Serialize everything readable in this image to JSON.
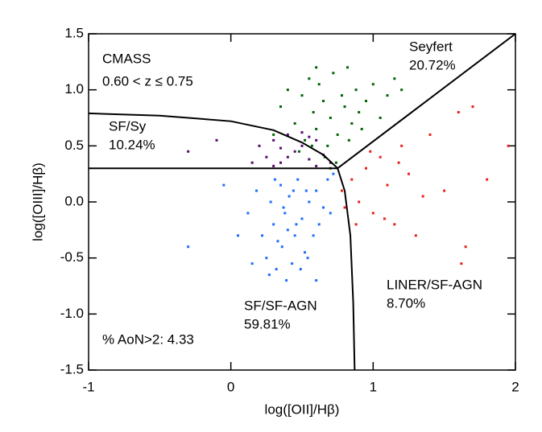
{
  "chart_data": {
    "type": "scatter",
    "xlabel": "log([OII]/Hβ)",
    "ylabel": "log([OIII]/Hβ)",
    "xlim": [
      -1,
      2
    ],
    "ylim": [
      -1.5,
      1.5
    ],
    "xticks": [
      -1,
      0,
      1,
      2
    ],
    "yticks": [
      1.5,
      {
        "value": 1.0,
        "label": "1.0"
      },
      0.5,
      {
        "value": 0.0,
        "label": "0.0"
      },
      -0.5,
      {
        "value": -1.0,
        "label": "-1.0"
      },
      -1.5
    ],
    "annotations": [
      "CMASS",
      "0.60 < z ≤ 0.75",
      "Seyfert",
      "20.72%",
      "SF/Sy",
      "10.24%",
      "SF/SF-AGN",
      "59.81%",
      "LINER/SF-AGN",
      "8.70%",
      "% AoN>2:  4.33"
    ],
    "series": [
      {
        "color": "#1e6cff",
        "x": [
          0.12,
          0.18,
          0.22,
          0.25,
          0.28,
          0.3,
          0.32,
          0.35,
          0.36,
          0.38,
          0.4,
          0.41,
          0.43,
          0.45,
          0.47,
          0.5,
          0.52,
          0.55,
          0.58,
          0.6,
          0.62,
          0.65,
          0.68,
          0.7,
          0.72,
          0.27,
          0.33,
          0.39,
          0.44,
          0.49,
          0.54,
          0.31,
          0.37,
          0.46,
          0.53,
          -0.3,
          -0.05,
          0.05,
          0.15,
          0.6
        ],
        "y": [
          -0.1,
          0.1,
          -0.3,
          -0.5,
          0.0,
          -0.2,
          -0.6,
          0.15,
          -0.4,
          -0.1,
          -0.25,
          0.05,
          -0.55,
          -0.3,
          0.2,
          -0.15,
          -0.45,
          0.0,
          -0.3,
          0.1,
          -0.2,
          -0.05,
          0.2,
          -0.1,
          0.25,
          -0.65,
          -0.35,
          -0.7,
          0.1,
          -0.6,
          -0.5,
          0.2,
          -0.05,
          -0.2,
          0.1,
          -0.4,
          0.15,
          -0.3,
          -0.55,
          -0.7
        ]
      },
      {
        "color": "#006400",
        "x": [
          0.3,
          0.35,
          0.4,
          0.45,
          0.5,
          0.52,
          0.55,
          0.58,
          0.6,
          0.62,
          0.65,
          0.68,
          0.7,
          0.72,
          0.75,
          0.78,
          0.8,
          0.82,
          0.85,
          0.88,
          0.9,
          0.95,
          1.0,
          1.05,
          1.1,
          1.15,
          1.2,
          0.48,
          0.57,
          0.66,
          0.74,
          0.83,
          0.92,
          0.7,
          0.6
        ],
        "y": [
          0.6,
          0.85,
          1.0,
          0.7,
          0.95,
          0.55,
          1.1,
          0.8,
          0.65,
          1.05,
          0.9,
          0.5,
          0.75,
          1.15,
          0.6,
          0.95,
          0.85,
          1.2,
          0.7,
          1.0,
          0.8,
          0.9,
          1.05,
          0.75,
          0.95,
          1.1,
          1.0,
          0.45,
          0.5,
          0.4,
          0.35,
          0.55,
          0.65,
          0.3,
          1.2
        ]
      },
      {
        "color": "#5a0a6e",
        "x": [
          -0.3,
          -0.1,
          0.15,
          0.2,
          0.25,
          0.3,
          0.35,
          0.4,
          0.45,
          0.5,
          0.55,
          0.6,
          0.65,
          0.7,
          0.3,
          0.4,
          0.5,
          0.6,
          0.35,
          0.55
        ],
        "y": [
          0.45,
          0.55,
          0.35,
          0.5,
          0.4,
          0.55,
          0.35,
          0.6,
          0.45,
          0.5,
          0.38,
          0.55,
          0.42,
          0.35,
          0.32,
          0.4,
          0.62,
          0.32,
          0.48,
          0.58
        ]
      },
      {
        "color": "#e8201a",
        "x": [
          0.78,
          0.8,
          0.85,
          0.9,
          0.95,
          1.0,
          1.05,
          1.1,
          1.15,
          1.2,
          1.25,
          1.3,
          1.4,
          1.5,
          1.6,
          1.7,
          1.8,
          1.95,
          0.88,
          0.98,
          1.08,
          1.18,
          1.35,
          1.65,
          1.62
        ],
        "y": [
          0.1,
          -0.05,
          0.2,
          0.0,
          0.3,
          -0.1,
          0.4,
          0.15,
          -0.2,
          0.5,
          0.25,
          -0.3,
          0.6,
          0.1,
          0.8,
          0.85,
          0.2,
          0.5,
          -0.2,
          0.45,
          -0.15,
          0.35,
          0.05,
          -0.4,
          -0.55
        ]
      }
    ],
    "boundaries": [
      {
        "color": "#000000",
        "x": [
          -1,
          -0.5,
          0,
          0.3,
          0.5,
          0.65,
          0.75,
          0.8,
          0.84,
          0.86,
          0.87
        ],
        "y": [
          0.79,
          0.77,
          0.72,
          0.64,
          0.53,
          0.42,
          0.3,
          0.1,
          -0.3,
          -0.9,
          -1.5
        ]
      },
      {
        "color": "#000000",
        "x": [
          -1,
          0.75
        ],
        "y": [
          0.3,
          0.3
        ]
      },
      {
        "color": "#000000",
        "x": [
          0.75,
          2
        ],
        "y": [
          0.3,
          1.5
        ]
      }
    ]
  }
}
